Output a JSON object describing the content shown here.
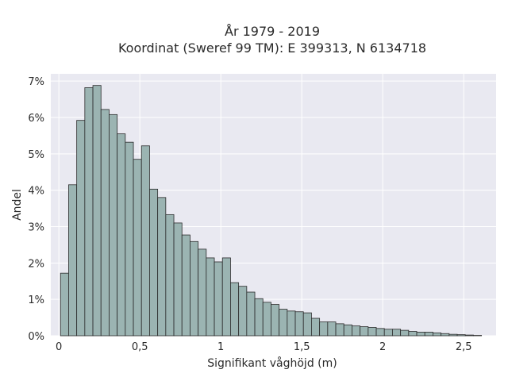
{
  "chart_data": {
    "type": "bar",
    "title": "År 1979 - 2019",
    "subtitle": "Koordinat (Sweref 99 TM): E 399313, N 6134718",
    "xlabel": "Signifikant våghöjd (m)",
    "ylabel": "Andel",
    "xlim": [
      -0.05,
      2.7
    ],
    "ylim": [
      0,
      7.2
    ],
    "x_ticks": [
      0,
      0.5,
      1,
      1.5,
      2,
      2.5
    ],
    "x_tick_labels": [
      "0",
      "0,5",
      "1",
      "1,5",
      "2",
      "2,5"
    ],
    "y_ticks": [
      0,
      1,
      2,
      3,
      4,
      5,
      6,
      7
    ],
    "y_tick_labels": [
      "0%",
      "1%",
      "2%",
      "3%",
      "4%",
      "5%",
      "6%",
      "7%"
    ],
    "bin_start": 0.01,
    "bin_width": 0.05,
    "values": [
      1.72,
      4.15,
      5.92,
      6.82,
      6.88,
      6.22,
      6.08,
      5.55,
      5.32,
      4.85,
      5.22,
      4.03,
      3.8,
      3.33,
      3.1,
      2.77,
      2.59,
      2.38,
      2.14,
      2.03,
      2.14,
      1.46,
      1.36,
      1.2,
      1.02,
      0.92,
      0.86,
      0.73,
      0.68,
      0.66,
      0.63,
      0.48,
      0.38,
      0.38,
      0.33,
      0.3,
      0.27,
      0.25,
      0.23,
      0.2,
      0.18,
      0.18,
      0.15,
      0.12,
      0.1,
      0.1,
      0.08,
      0.06,
      0.04,
      0.03,
      0.02,
      0.01
    ],
    "grid": true,
    "colors": {
      "bar_fill": "#9bb4b2",
      "bar_edge": "#2b2b2b",
      "plot_background": "#e9e9f1",
      "grid": "#ffffff"
    }
  }
}
